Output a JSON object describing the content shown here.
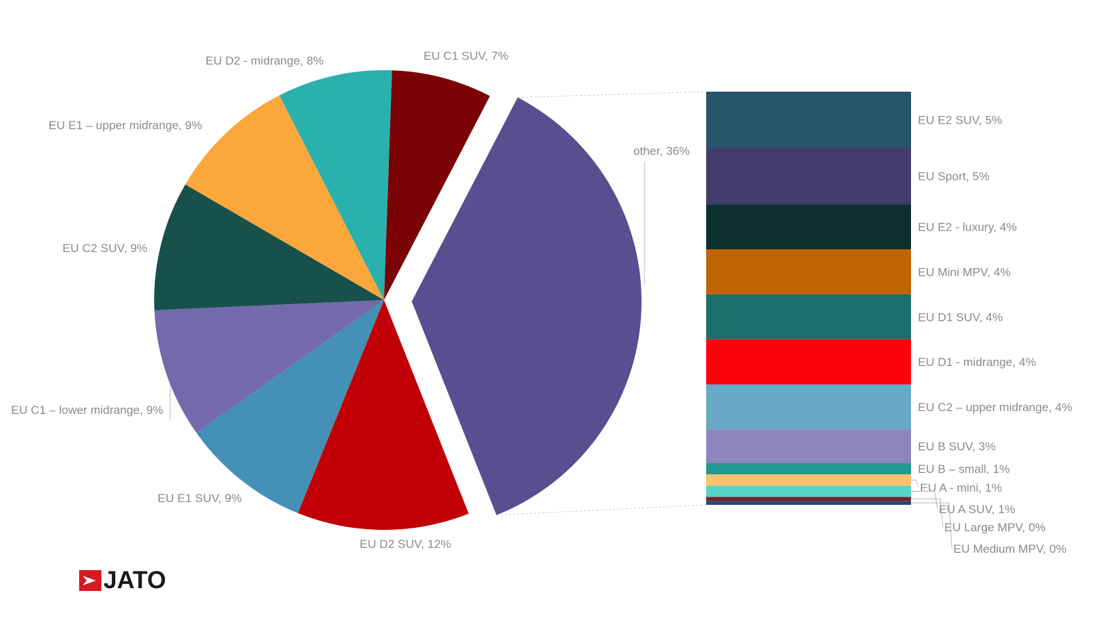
{
  "chart_data": {
    "type": "pie",
    "subtype": "bar-of-pie",
    "pie": [
      {
        "label": "EU C1 SUV, 7%",
        "value": 7,
        "color": "#7b0205"
      },
      {
        "label": "other, 36%",
        "value": 36,
        "color": "#574f90",
        "exploded": true
      },
      {
        "label": "EU D2 SUV, 12%",
        "value": 12,
        "color": "#c10005"
      },
      {
        "label": "EU E1 SUV, 9%",
        "value": 9,
        "color": "#4590b6"
      },
      {
        "label": "EU C1 – lower midrange, 9%",
        "value": 9,
        "color": "#7369ab"
      },
      {
        "label": "EU C2 SUV, 9%",
        "value": 9,
        "color": "#18504c"
      },
      {
        "label": "EU E1 – upper midrange, 9%",
        "value": 9,
        "color": "#fba73c"
      },
      {
        "label": "EU D2 - midrange, 8%",
        "value": 8,
        "color": "#2ab1ad"
      }
    ],
    "breakdown": [
      {
        "label": "EU E2 SUV, 5%",
        "value": 5,
        "color": "#26566c"
      },
      {
        "label": "EU Sport, 5%",
        "value": 5,
        "color": "#423b6c"
      },
      {
        "label": "EU E2 - luxury, 4%",
        "value": 4,
        "color": "#0d302e"
      },
      {
        "label": "EU Mini MPV, 4%",
        "value": 4,
        "color": "#bf6402"
      },
      {
        "label": "EU D1 SUV, 4%",
        "value": 4,
        "color": "#1a6f6b"
      },
      {
        "label": "EU D1 - midrange, 4%",
        "value": 4,
        "color": "#fc0310"
      },
      {
        "label": "EU C2 – upper midrange, 4%",
        "value": 4,
        "color": "#68aac8"
      },
      {
        "label": "EU B SUV, 3%",
        "value": 3,
        "color": "#8d86bf"
      },
      {
        "label": "EU B – small, 1%",
        "value": 1,
        "color": "#24978e"
      },
      {
        "label": "EU A - mini, 1%",
        "value": 1,
        "color": "#fbc26e"
      },
      {
        "label": "EU A SUV, 1%",
        "value": 1,
        "color": "#56d5c9"
      },
      {
        "label": "EU Large MPV, 0%",
        "value": 0.35,
        "color": "#7b1f2a"
      },
      {
        "label": "EU Medium MPV, 0%",
        "value": 0.35,
        "color": "#2d4773"
      }
    ]
  },
  "logo": {
    "text": "JATO",
    "color": "#d71920"
  }
}
